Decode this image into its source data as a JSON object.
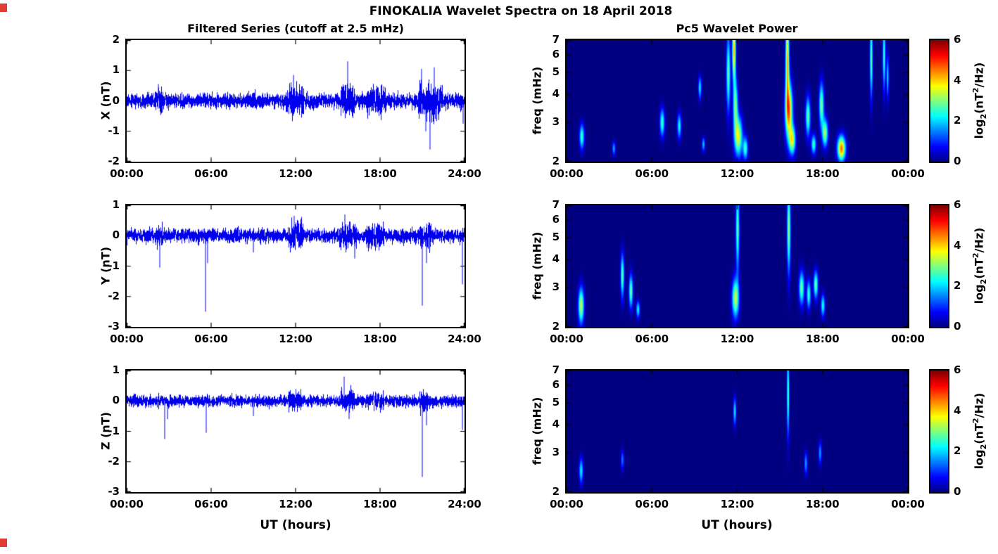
{
  "figure": {
    "title": "FINOKALIA Wavelet Spectra on 18 April 2018",
    "left_title": "Filtered Series (cutoff at 2.5 mHz)",
    "right_title": "Pc5 Wavelet Power",
    "x_label": "UT (hours)",
    "corner_marker_color": "#e03c31"
  },
  "x_axis": {
    "range_hours": [
      0,
      24
    ],
    "tick_hours": [
      0,
      6,
      12,
      18,
      24
    ],
    "left_tick_labels": [
      "00:00",
      "06:00",
      "12:00",
      "18:00",
      "24:00"
    ],
    "right_tick_labels": [
      "00:00",
      "06:00",
      "12:00",
      "18:00",
      "00:00"
    ]
  },
  "colorbar": {
    "range": [
      0,
      6
    ],
    "ticks": [
      0,
      2,
      4,
      6
    ],
    "colormap": "jet",
    "label_parts": {
      "pre": "log",
      "sub": "2",
      "mid": "(nT",
      "sup": "2",
      "post": "/Hz)"
    }
  },
  "chart_data": [
    {
      "type": "line",
      "ylabel": "X (nT)",
      "ylim": [
        -2,
        2
      ],
      "yticks": [
        -2,
        -1,
        0,
        1,
        2
      ],
      "line_color": "#0000EE",
      "noise_std": 0.12,
      "bursts": [
        {
          "t0": 2.0,
          "t1": 2.5,
          "std": 0.2
        },
        {
          "t0": 8.8,
          "t1": 9.3,
          "std": 0.17
        },
        {
          "t0": 11.3,
          "t1": 12.6,
          "std": 0.26
        },
        {
          "t0": 15.2,
          "t1": 16.2,
          "std": 0.27
        },
        {
          "t0": 17.0,
          "t1": 18.4,
          "std": 0.24
        },
        {
          "t0": 20.7,
          "t1": 22.4,
          "std": 0.3
        }
      ],
      "spikes": [
        {
          "t": 2.25,
          "v": 0.55
        },
        {
          "t": 11.85,
          "v": 0.85
        },
        {
          "t": 15.7,
          "v": 1.3
        },
        {
          "t": 20.95,
          "v": 1.05
        },
        {
          "t": 21.25,
          "v": -1.0
        },
        {
          "t": 21.55,
          "v": -1.6
        },
        {
          "t": 21.85,
          "v": 1.1
        },
        {
          "t": 23.9,
          "v": -0.75
        }
      ]
    },
    {
      "type": "line",
      "ylabel": "Y (nT)",
      "ylim": [
        -3,
        1
      ],
      "yticks": [
        -3,
        -2,
        -1,
        0,
        1
      ],
      "line_color": "#0000EE",
      "noise_std": 0.11,
      "bursts": [
        {
          "t0": 2.0,
          "t1": 2.5,
          "std": 0.18
        },
        {
          "t0": 11.4,
          "t1": 12.5,
          "std": 0.24
        },
        {
          "t0": 15.1,
          "t1": 16.3,
          "std": 0.22
        },
        {
          "t0": 17.0,
          "t1": 18.3,
          "std": 0.2
        },
        {
          "t0": 20.8,
          "t1": 21.7,
          "std": 0.22
        }
      ],
      "spikes": [
        {
          "t": 2.35,
          "v": -1.05
        },
        {
          "t": 5.6,
          "v": -2.5
        },
        {
          "t": 5.75,
          "v": -0.9
        },
        {
          "t": 9.0,
          "v": -0.55
        },
        {
          "t": 11.9,
          "v": 0.65
        },
        {
          "t": 15.5,
          "v": 0.7
        },
        {
          "t": 16.2,
          "v": -0.75
        },
        {
          "t": 21.0,
          "v": -2.3
        },
        {
          "t": 21.3,
          "v": -0.9
        },
        {
          "t": 23.85,
          "v": -1.6
        }
      ]
    },
    {
      "type": "line",
      "ylabel": "Z (nT)",
      "ylim": [
        -3,
        1
      ],
      "yticks": [
        -3,
        -2,
        -1,
        0,
        1
      ],
      "line_color": "#0000EE",
      "noise_std": 0.09,
      "bursts": [
        {
          "t0": 11.5,
          "t1": 12.4,
          "std": 0.18
        },
        {
          "t0": 15.2,
          "t1": 16.2,
          "std": 0.18
        },
        {
          "t0": 17.0,
          "t1": 18.2,
          "std": 0.15
        },
        {
          "t0": 20.8,
          "t1": 21.5,
          "std": 0.18
        }
      ],
      "spikes": [
        {
          "t": 2.7,
          "v": -1.25
        },
        {
          "t": 2.9,
          "v": -0.6
        },
        {
          "t": 5.65,
          "v": -1.05
        },
        {
          "t": 9.0,
          "v": -0.5
        },
        {
          "t": 15.45,
          "v": 0.8
        },
        {
          "t": 15.8,
          "v": -0.6
        },
        {
          "t": 21.0,
          "v": -2.5
        },
        {
          "t": 21.3,
          "v": -0.8
        },
        {
          "t": 23.85,
          "v": -0.95
        }
      ]
    },
    {
      "type": "heatmap",
      "ylabel": "freq (mHz)",
      "f_range": [
        2,
        7
      ],
      "f_scale": "log",
      "yticks": [
        2,
        3,
        4,
        5,
        6,
        7
      ],
      "power_range": [
        0,
        6
      ],
      "blobs": [
        {
          "t": 1.05,
          "f": 2.6,
          "dt": 0.12,
          "df": 0.09,
          "p": 2.6
        },
        {
          "t": 3.3,
          "f": 2.3,
          "dt": 0.08,
          "df": 0.05,
          "p": 1.8
        },
        {
          "t": 6.7,
          "f": 3.0,
          "dt": 0.12,
          "df": 0.1,
          "p": 2.6
        },
        {
          "t": 7.9,
          "f": 2.9,
          "dt": 0.1,
          "df": 0.09,
          "p": 2.3
        },
        {
          "t": 9.35,
          "f": 4.3,
          "dt": 0.08,
          "df": 0.08,
          "p": 2.2
        },
        {
          "t": 9.6,
          "f": 2.4,
          "dt": 0.08,
          "df": 0.05,
          "p": 1.9
        },
        {
          "t": 11.35,
          "f": 5.0,
          "dt": 0.1,
          "df": 0.28,
          "p": 2.8
        },
        {
          "t": 11.75,
          "f": 6.3,
          "dt": 0.09,
          "df": 0.22,
          "p": 4.2
        },
        {
          "t": 11.85,
          "f": 3.6,
          "dt": 0.12,
          "df": 0.18,
          "p": 2.9
        },
        {
          "t": 12.05,
          "f": 2.6,
          "dt": 0.2,
          "df": 0.14,
          "p": 3.6
        },
        {
          "t": 12.55,
          "f": 2.3,
          "dt": 0.12,
          "df": 0.08,
          "p": 2.6
        },
        {
          "t": 15.5,
          "f": 5.8,
          "dt": 0.09,
          "df": 0.3,
          "p": 4.2
        },
        {
          "t": 15.6,
          "f": 3.4,
          "dt": 0.18,
          "df": 0.2,
          "p": 4.6
        },
        {
          "t": 15.85,
          "f": 2.5,
          "dt": 0.16,
          "df": 0.1,
          "p": 3.4
        },
        {
          "t": 16.95,
          "f": 3.2,
          "dt": 0.12,
          "df": 0.14,
          "p": 2.9
        },
        {
          "t": 17.35,
          "f": 2.4,
          "dt": 0.12,
          "df": 0.07,
          "p": 2.6
        },
        {
          "t": 17.9,
          "f": 3.6,
          "dt": 0.12,
          "df": 0.16,
          "p": 3.0
        },
        {
          "t": 18.15,
          "f": 2.7,
          "dt": 0.14,
          "df": 0.1,
          "p": 3.2
        },
        {
          "t": 19.3,
          "f": 2.3,
          "dt": 0.2,
          "df": 0.09,
          "p": 4.6
        },
        {
          "t": 21.4,
          "f": 5.8,
          "dt": 0.07,
          "df": 0.28,
          "p": 2.9
        },
        {
          "t": 22.3,
          "f": 6.0,
          "dt": 0.07,
          "df": 0.25,
          "p": 2.6
        },
        {
          "t": 22.55,
          "f": 4.8,
          "dt": 0.06,
          "df": 0.15,
          "p": 2.1
        }
      ]
    },
    {
      "type": "heatmap",
      "ylabel": "freq (mHz)",
      "f_range": [
        2,
        7
      ],
      "f_scale": "log",
      "yticks": [
        2,
        3,
        4,
        5,
        6,
        7
      ],
      "power_range": [
        0,
        6
      ],
      "blobs": [
        {
          "t": 1.0,
          "f": 2.5,
          "dt": 0.14,
          "df": 0.13,
          "p": 3.4
        },
        {
          "t": 3.9,
          "f": 3.4,
          "dt": 0.09,
          "df": 0.16,
          "p": 2.8
        },
        {
          "t": 4.5,
          "f": 2.9,
          "dt": 0.1,
          "df": 0.12,
          "p": 2.9
        },
        {
          "t": 5.0,
          "f": 2.4,
          "dt": 0.09,
          "df": 0.06,
          "p": 2.3
        },
        {
          "t": 11.85,
          "f": 2.7,
          "dt": 0.17,
          "df": 0.14,
          "p": 3.4
        },
        {
          "t": 12.0,
          "f": 5.5,
          "dt": 0.09,
          "df": 0.3,
          "p": 2.8
        },
        {
          "t": 15.6,
          "f": 5.5,
          "dt": 0.09,
          "df": 0.32,
          "p": 3.1
        },
        {
          "t": 16.5,
          "f": 3.0,
          "dt": 0.13,
          "df": 0.12,
          "p": 2.9
        },
        {
          "t": 17.0,
          "f": 2.8,
          "dt": 0.1,
          "df": 0.1,
          "p": 2.6
        },
        {
          "t": 17.5,
          "f": 3.1,
          "dt": 0.11,
          "df": 0.1,
          "p": 2.9
        },
        {
          "t": 18.0,
          "f": 2.5,
          "dt": 0.1,
          "df": 0.08,
          "p": 2.4
        }
      ]
    },
    {
      "type": "heatmap",
      "ylabel": "freq (mHz)",
      "f_range": [
        2,
        7
      ],
      "f_scale": "log",
      "yticks": [
        2,
        3,
        4,
        5,
        6,
        7
      ],
      "power_range": [
        0,
        6
      ],
      "blobs": [
        {
          "t": 1.0,
          "f": 2.5,
          "dt": 0.1,
          "df": 0.09,
          "p": 2.2
        },
        {
          "t": 3.9,
          "f": 2.8,
          "dt": 0.08,
          "df": 0.07,
          "p": 1.5
        },
        {
          "t": 11.8,
          "f": 4.6,
          "dt": 0.07,
          "df": 0.1,
          "p": 2.2
        },
        {
          "t": 15.55,
          "f": 5.5,
          "dt": 0.06,
          "df": 0.3,
          "p": 2.9
        },
        {
          "t": 16.8,
          "f": 2.7,
          "dt": 0.08,
          "df": 0.08,
          "p": 1.7
        },
        {
          "t": 17.8,
          "f": 3.0,
          "dt": 0.08,
          "df": 0.08,
          "p": 1.7
        }
      ]
    }
  ]
}
